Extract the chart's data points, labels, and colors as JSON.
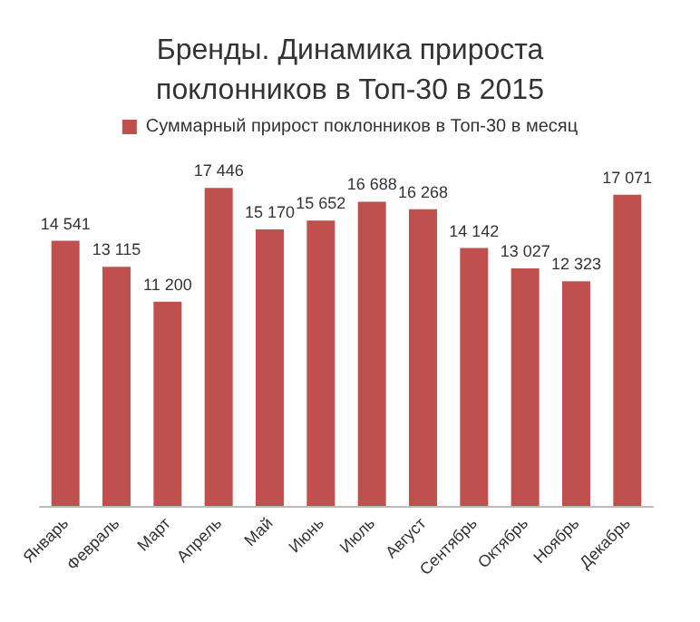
{
  "chart_data": {
    "type": "bar",
    "title": "Бренды. Динамика прироста\nпоклонников в Топ-30 в 2015",
    "categories": [
      "Январь",
      "Февраль",
      "Март",
      "Апрель",
      "Май",
      "Июнь",
      "Июль",
      "Август",
      "Сентябрь",
      "Октябрь",
      "Ноябрь",
      "Декабрь"
    ],
    "series": [
      {
        "name": "Суммарный прирост поклонников в Топ-30 в месяц",
        "color": "#c0504d",
        "values": [
          14541,
          13115,
          11200,
          17446,
          15170,
          15652,
          16688,
          16268,
          14142,
          13027,
          12323,
          17071
        ],
        "value_labels": [
          "14 541",
          "13 115",
          "11 200",
          "17 446",
          "15 170",
          "15 652",
          "16 688",
          "16 268",
          "14 142",
          "13 027",
          "12 323",
          "17 071"
        ]
      }
    ],
    "legend": "top",
    "grid": false
  }
}
